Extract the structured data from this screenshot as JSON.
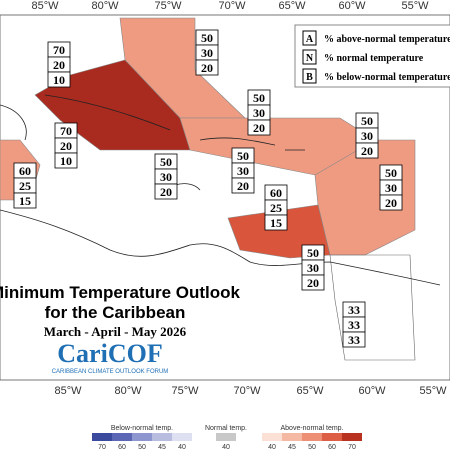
{
  "axes": {
    "top_labels": [
      "85°W",
      "80°W",
      "75°W",
      "70°W",
      "65°W",
      "60°W",
      "55°W"
    ],
    "bottom_labels": [
      "85°W",
      "80°W",
      "75°W",
      "70°W",
      "65°W",
      "60°W",
      "55°W"
    ]
  },
  "legend": {
    "rows": [
      {
        "key": "A",
        "text": "% above-normal temperature"
      },
      {
        "key": "N",
        "text": "% normal temperature"
      },
      {
        "key": "B",
        "text": "% below-normal temperature"
      }
    ]
  },
  "title": {
    "line1": "Minimum Temperature Outlook",
    "line2": "for the Caribbean",
    "period": "March - April - May 2026"
  },
  "logo": {
    "name": "CariCOF",
    "subtitle": "CARIBBEAN CLIMATE OUTLOOK FORUM"
  },
  "outlook_boxes": [
    {
      "values": [
        "70",
        "20",
        "10"
      ]
    },
    {
      "values": [
        "50",
        "30",
        "20"
      ]
    },
    {
      "values": [
        "70",
        "20",
        "10"
      ]
    },
    {
      "values": [
        "60",
        "25",
        "15"
      ]
    },
    {
      "values": [
        "50",
        "30",
        "20"
      ]
    },
    {
      "values": [
        "50",
        "30",
        "20"
      ]
    },
    {
      "values": [
        "50",
        "30",
        "20"
      ]
    },
    {
      "values": [
        "50",
        "30",
        "20"
      ]
    },
    {
      "values": [
        "60",
        "25",
        "15"
      ]
    },
    {
      "values": [
        "50",
        "30",
        "20"
      ]
    },
    {
      "values": [
        "50",
        "30",
        "20"
      ]
    },
    {
      "values": [
        "33",
        "33",
        "33"
      ]
    }
  ],
  "color_bar": {
    "below": {
      "label": "Below-normal temp.",
      "ticks": [
        "70",
        "60",
        "50",
        "45",
        "40"
      ]
    },
    "normal": {
      "label": "Normal temp.",
      "ticks": [
        "40"
      ]
    },
    "above": {
      "label": "Above-normal temp.",
      "ticks": [
        "40",
        "45",
        "50",
        "60",
        "70"
      ]
    }
  }
}
